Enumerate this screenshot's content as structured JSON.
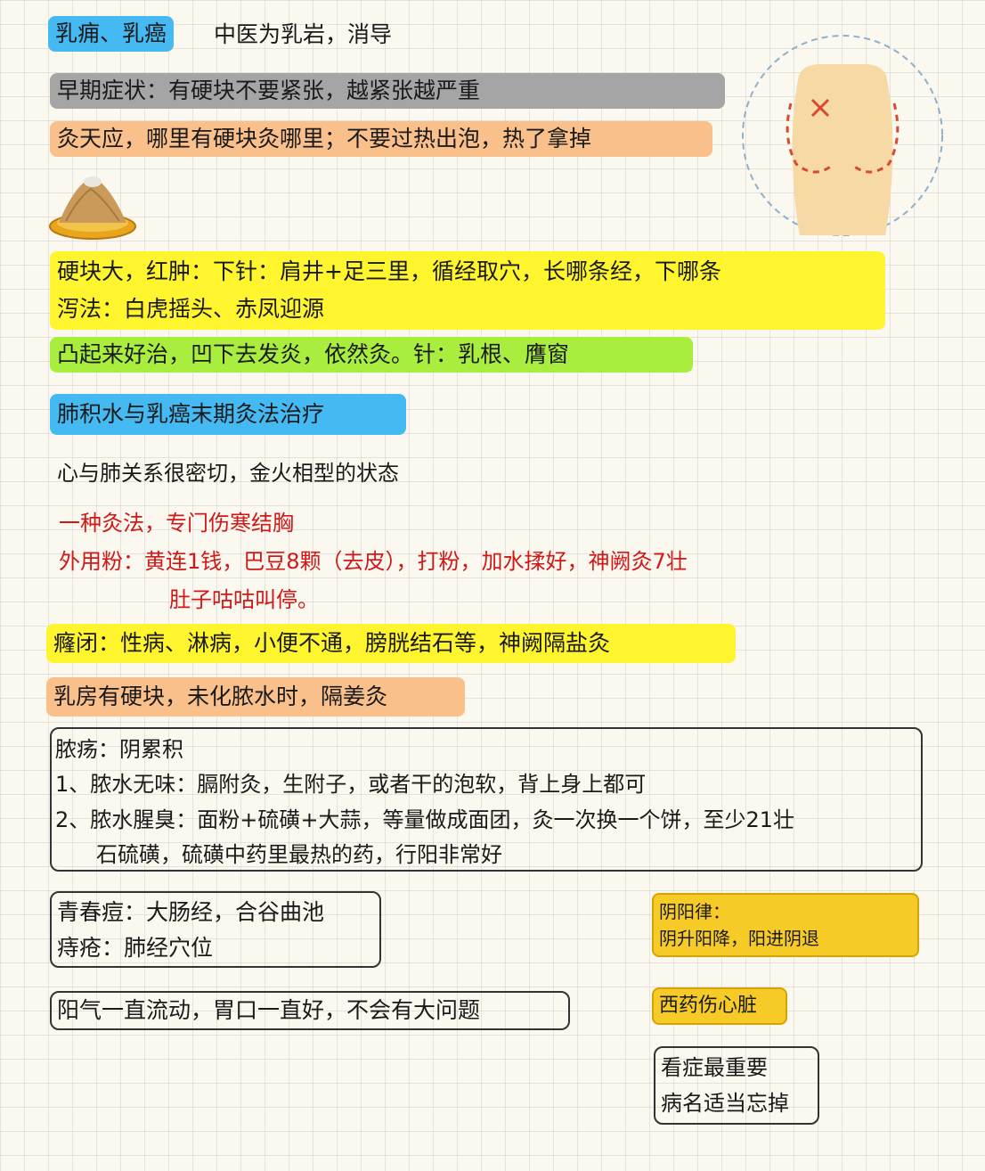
{
  "colors": {
    "blue": "#45b9f2",
    "gray": "#a5a5a5",
    "orange": "#f9c08b",
    "yellow": "#fff52e",
    "green": "#a9ee3f",
    "gold": "#f6cb28",
    "red": "#d01818",
    "skin": "#f7d9a6"
  },
  "header": {
    "title": "乳痈、乳癌",
    "subtitle": "中医为乳岩，消导"
  },
  "early": {
    "symptom": "早期症状：有硬块不要紧张，越紧张越严重",
    "moxa": "灸天应，哪里有硬块灸哪里；不要过热出泡，热了拿掉"
  },
  "illustration": {
    "figure": "torso-icon",
    "mark": "x-mark-icon",
    "cone": "moxa-cone-icon"
  },
  "yellow_block": {
    "line1": "硬块大，红肿：下针：肩井+足三里，循经取穴，长哪条经，下哪条",
    "line2": "泻法：白虎摇头、赤凤迎源"
  },
  "green_block": "凸起来好治，凹下去发炎，依然灸。针：乳根、膺窗",
  "section2": {
    "title": "肺积水与乳癌末期灸法治疗",
    "relation": "心与肺关系很密切，金火相型的状态"
  },
  "red_block": {
    "line1": "一种灸法，专门伤寒结胸",
    "line2": "外用粉：黄连1钱，巴豆8颗（去皮），打粉，加水揉好，神阙灸7壮",
    "line3": "肚子咕咕叫停。"
  },
  "longbi": "癃闭：性病、淋病，小便不通，膀胱结石等，神阙隔盐灸",
  "breast_lump": "乳房有硬块，未化脓水时，隔姜灸",
  "pus_box": {
    "title": "脓疡：阴累积",
    "item1": "1、脓水无味：膈附灸，生附子，或者干的泡软，背上身上都可",
    "item2": "2、脓水腥臭：面粉+硫磺+大蒜，等量做成面团，灸一次换一个饼，至少21壮",
    "item2_cont": "石硫磺，硫磺中药里最热的药，行阳非常好"
  },
  "acne_box": {
    "line1": "青春痘：大肠经，合谷曲池",
    "line2": "痔疮：肺经穴位"
  },
  "yin_yang": {
    "title": "阴阳律：",
    "text": "阴升阳降，阳进阴退"
  },
  "yang_qi": "阳气一直流动，胃口一直好，不会有大问题",
  "western_medicine": "西药伤心脏",
  "symptom_box": {
    "line1": "看症最重要",
    "line2": "病名适当忘掉"
  }
}
